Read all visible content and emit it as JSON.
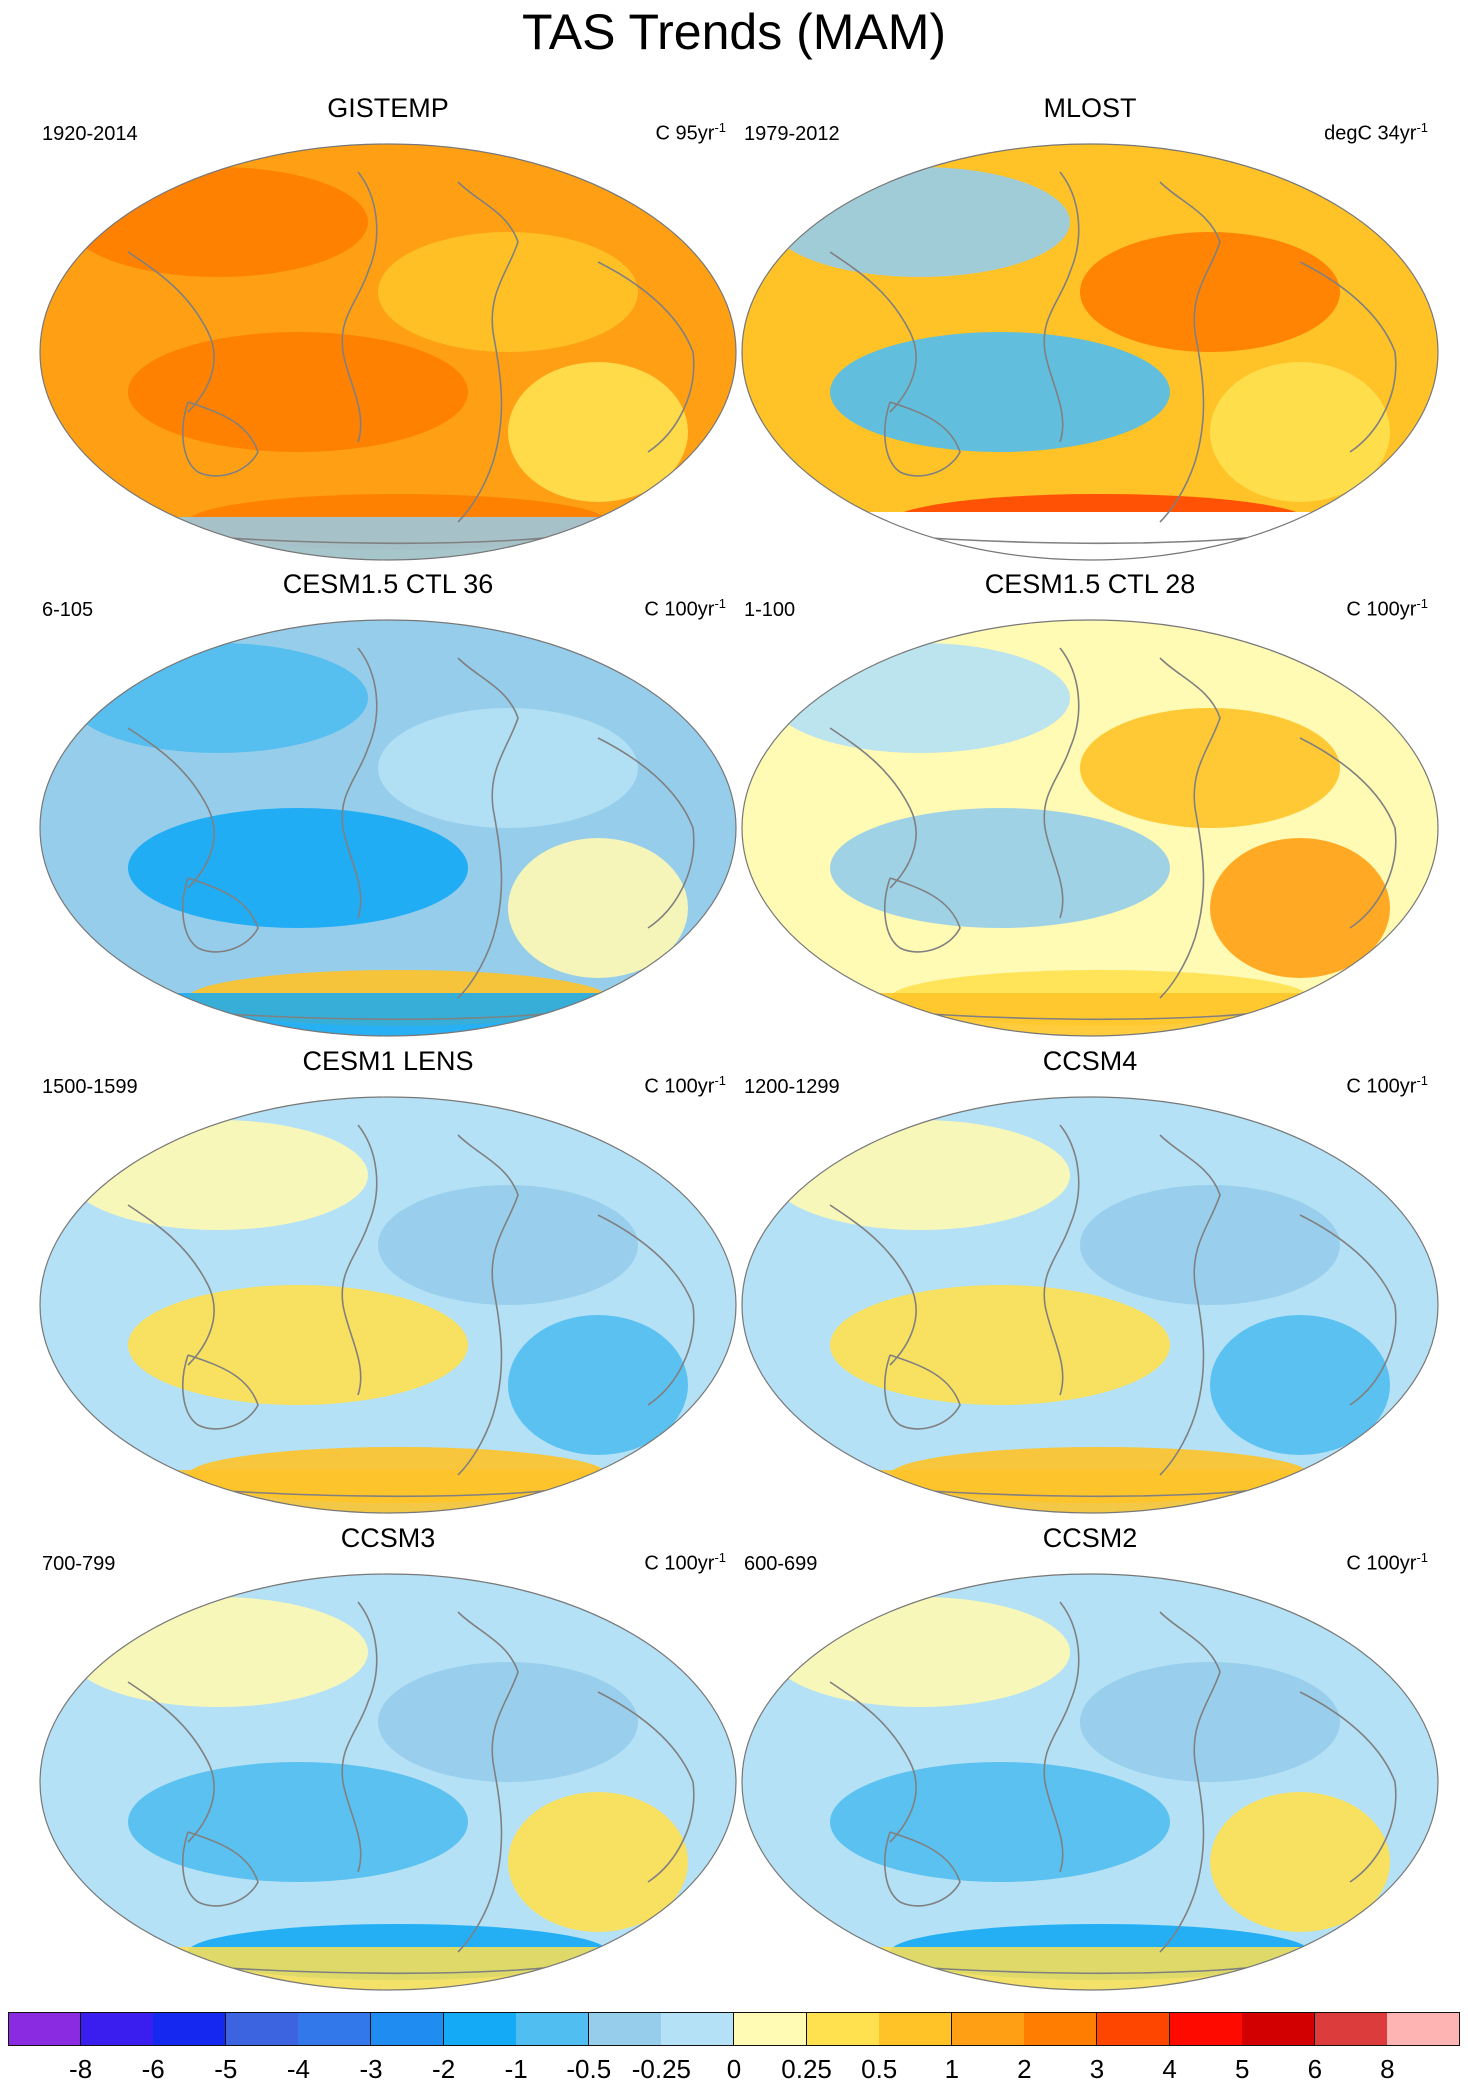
{
  "title": "TAS Trends (MAM)",
  "panels": [
    {
      "id": "gistemp",
      "title": "GISTEMP",
      "period": "1920-2014",
      "unit_label": "C 95yr",
      "unit_exp": "-1",
      "tone": "warm-strong"
    },
    {
      "id": "mlost",
      "title": "MLOST",
      "period": "1979-2012",
      "unit_label": "degC 34yr",
      "unit_exp": "-1",
      "tone": "warm-mixed"
    },
    {
      "id": "cesm15-ctl36",
      "title": "CESM1.5 CTL 36",
      "period": "6-105",
      "unit_label": "C 100yr",
      "unit_exp": "-1",
      "tone": "cool"
    },
    {
      "id": "cesm15-ctl28",
      "title": "CESM1.5 CTL 28",
      "period": "1-100",
      "unit_label": "C 100yr",
      "unit_exp": "-1",
      "tone": "mixed-warm"
    },
    {
      "id": "cesm1-lens",
      "title": "CESM1 LENS",
      "period": "1500-1599",
      "unit_label": "C 100yr",
      "unit_exp": "-1",
      "tone": "mixed"
    },
    {
      "id": "ccsm4",
      "title": "CCSM4",
      "period": "1200-1299",
      "unit_label": "C 100yr",
      "unit_exp": "-1",
      "tone": "mixed"
    },
    {
      "id": "ccsm3",
      "title": "CCSM3",
      "period": "700-799",
      "unit_label": "C 100yr",
      "unit_exp": "-1",
      "tone": "mixed-cool"
    },
    {
      "id": "ccsm2",
      "title": "CCSM2",
      "period": "600-699",
      "unit_label": "C 100yr",
      "unit_exp": "-1",
      "tone": "mixed-cool"
    }
  ],
  "colorbar": {
    "labels": [
      "-8",
      "-6",
      "-5",
      "-4",
      "-3",
      "-2",
      "-1",
      "-0.5",
      "-0.25",
      "0",
      "0.25",
      "0.5",
      "1",
      "2",
      "3",
      "4",
      "5",
      "6",
      "8"
    ],
    "colors": [
      "#8a2be2",
      "#3a1ef0",
      "#1428f0",
      "#3c64e0",
      "#3278eb",
      "#1e8cf0",
      "#14aaf5",
      "#50bef0",
      "#96cdeb",
      "#b4e1f5",
      "#fffab4",
      "#ffe150",
      "#ffc328",
      "#ffa014",
      "#ff7d00",
      "#ff4600",
      "#ff0a00",
      "#d20000",
      "#dc3c3c",
      "#ffb4b4"
    ]
  },
  "palette": {
    "coast": "#808080",
    "missing": "#ffffff"
  }
}
